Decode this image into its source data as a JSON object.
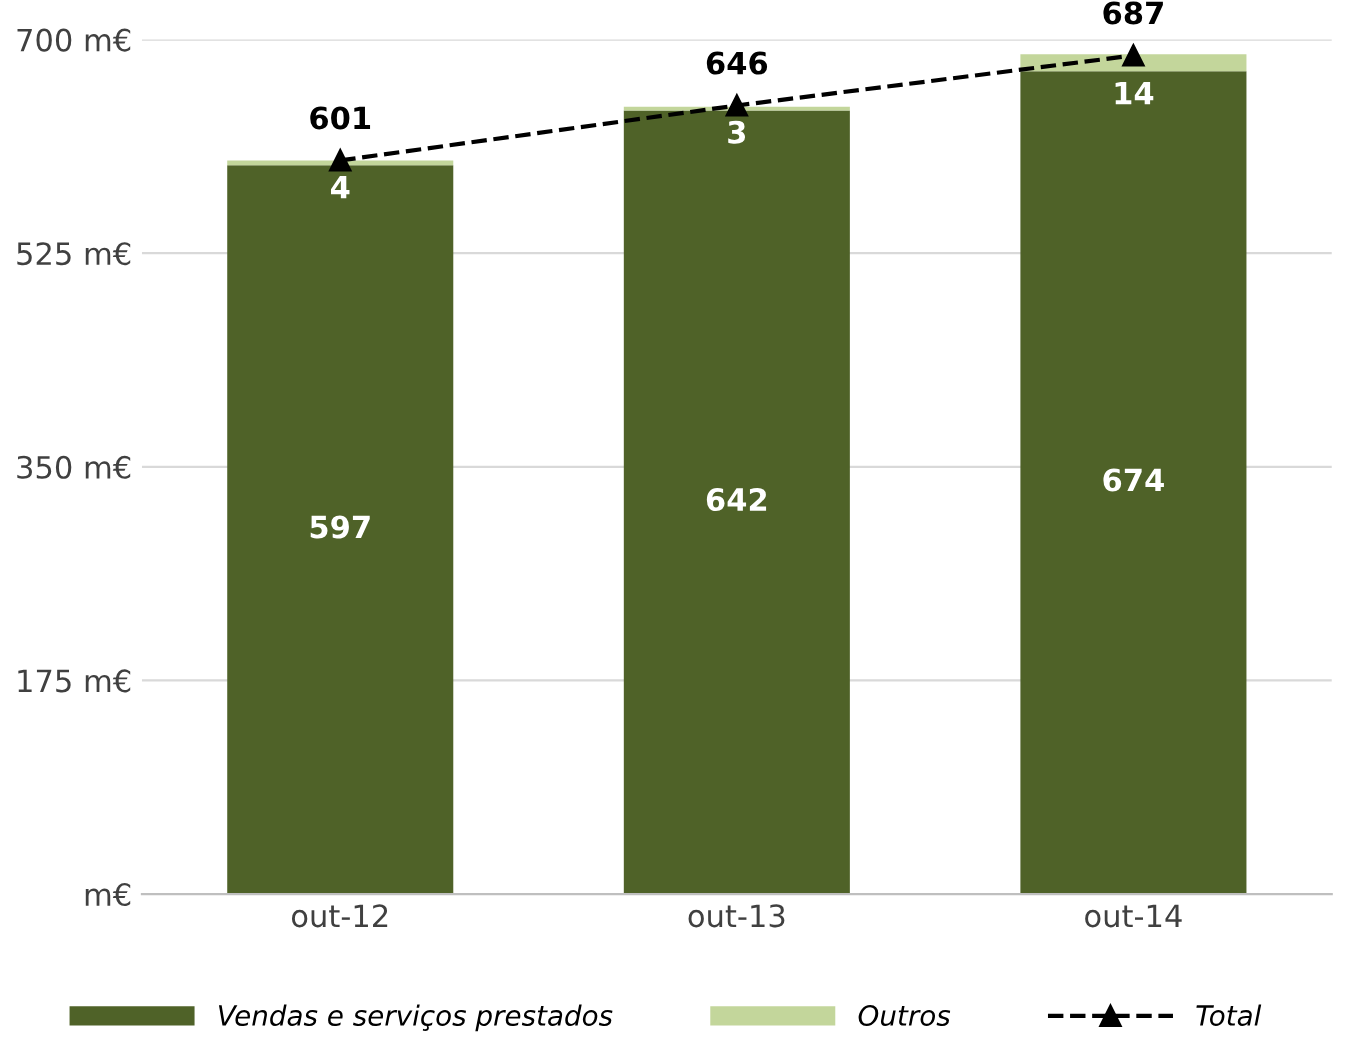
{
  "chart_data": {
    "type": "bar",
    "stacked": true,
    "categories": [
      "out-12",
      "out-13",
      "out-14"
    ],
    "series": [
      {
        "name": "Vendas e serviços prestados",
        "color": "#4f6228",
        "values": [
          597,
          642,
          674
        ]
      },
      {
        "name": "Outros",
        "color": "#c3d69b",
        "values": [
          4,
          3,
          14
        ]
      },
      {
        "name": "Total",
        "type": "line",
        "color": "#000000",
        "values": [
          601,
          646,
          687
        ],
        "marker": "triangle",
        "line_style": "dashed"
      }
    ],
    "ylim": [
      0,
      700
    ],
    "yticks": [
      {
        "value": 0,
        "label": "m€"
      },
      {
        "value": 175,
        "label": "175 m€"
      },
      {
        "value": 350,
        "label": "350 m€"
      },
      {
        "value": 525,
        "label": "525 m€"
      },
      {
        "value": 700,
        "label": "700 m€"
      }
    ],
    "grid": "y",
    "legend": "bottom",
    "data_labels": true
  }
}
